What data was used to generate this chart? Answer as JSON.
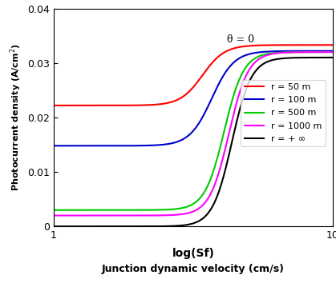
{
  "title": "",
  "xlabel": "log(Sf)",
  "xlabel2": "Junction dynamic velocity (cm/s)",
  "ylabel": "Photocurrent density (A/cm²)",
  "xmin": 1,
  "xmax": 10,
  "ymin": 0,
  "ymax": 0.04,
  "yticks": [
    0,
    0.01,
    0.02,
    0.03,
    0.04
  ],
  "xticks": [
    1,
    10
  ],
  "annotation": "θ = 0",
  "legend_entries": [
    "r = 50 m",
    "r = 100 m",
    "r = 500 m",
    "r = 1000 m",
    "r = + ∞"
  ],
  "line_colors": [
    "#ff0000",
    "#0000cc",
    "#00cc00",
    "#ff00ff",
    "#000000"
  ],
  "curve_params": [
    {
      "J_low": 0.0222,
      "J_high": 0.0333,
      "log_Sf_c": 5.8,
      "steepness": 2.8
    },
    {
      "J_low": 0.0148,
      "J_high": 0.0322,
      "log_Sf_c": 6.1,
      "steepness": 2.8
    },
    {
      "J_low": 0.003,
      "J_high": 0.032,
      "log_Sf_c": 6.5,
      "steepness": 3.2
    },
    {
      "J_low": 0.002,
      "J_high": 0.032,
      "log_Sf_c": 6.65,
      "steepness": 3.2
    },
    {
      "J_low": 0.0,
      "J_high": 0.031,
      "log_Sf_c": 6.75,
      "steepness": 3.2
    }
  ],
  "fig_width": 4.19,
  "fig_height": 3.54,
  "dpi": 100
}
